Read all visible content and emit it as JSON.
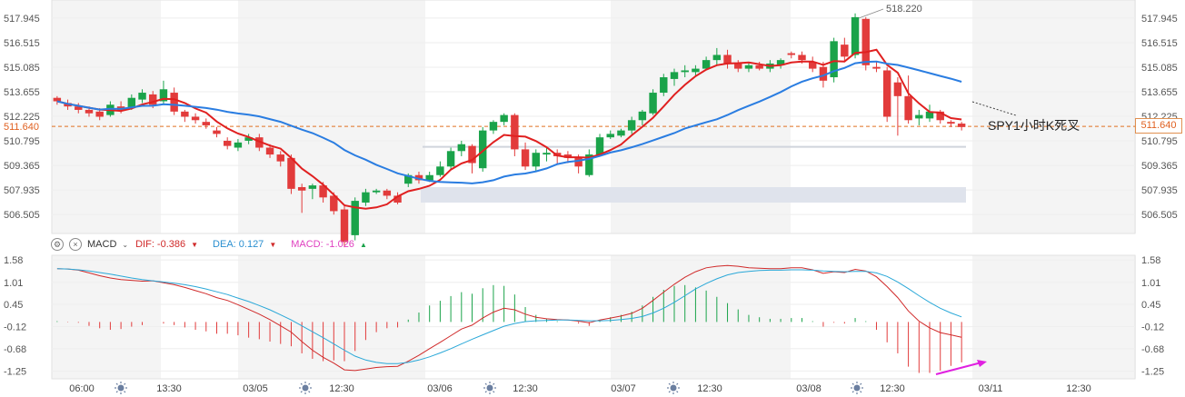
{
  "chart_data": [
    {
      "type": "candlestick",
      "annotation": "SPY1小时K死叉",
      "peak_label": "518.220",
      "current_price": "511.640",
      "y_ticks": [
        "517.945",
        "516.515",
        "515.085",
        "513.655",
        "512.225",
        "511.640",
        "510.795",
        "509.365",
        "507.935",
        "506.505"
      ],
      "ylim": [
        505.4,
        519.0
      ],
      "moving_averages": [
        {
          "color": "#e02020"
        },
        {
          "color": "#2a7de1"
        }
      ],
      "candles": [
        [
          513.3,
          513.1,
          513.4,
          512.9
        ],
        [
          513.0,
          512.8,
          513.2,
          512.6
        ],
        [
          512.8,
          512.6,
          513.0,
          512.4
        ],
        [
          512.6,
          512.4,
          512.8,
          512.2
        ],
        [
          512.5,
          512.2,
          512.7,
          512.0
        ],
        [
          512.3,
          512.9,
          513.1,
          512.2
        ],
        [
          512.8,
          512.6,
          513.1,
          512.4
        ],
        [
          512.7,
          513.3,
          513.5,
          512.6
        ],
        [
          513.2,
          513.6,
          513.8,
          513.0
        ],
        [
          513.5,
          512.9,
          513.7,
          512.7
        ],
        [
          513.1,
          513.8,
          514.3,
          512.9
        ],
        [
          513.6,
          512.5,
          513.9,
          512.3
        ],
        [
          512.5,
          512.2,
          512.6,
          511.9
        ],
        [
          512.2,
          512.0,
          512.4,
          511.8
        ],
        [
          511.9,
          511.7,
          512.1,
          511.5
        ],
        [
          511.4,
          511.2,
          511.6,
          511.0
        ],
        [
          510.8,
          510.5,
          511.0,
          510.3
        ],
        [
          510.4,
          510.7,
          510.9,
          510.2
        ],
        [
          510.8,
          511.0,
          511.2,
          510.6
        ],
        [
          511.0,
          510.4,
          511.2,
          510.2
        ],
        [
          510.4,
          510.0,
          510.6,
          509.8
        ],
        [
          510.0,
          509.6,
          510.2,
          509.3
        ],
        [
          509.8,
          508.0,
          510.0,
          507.7
        ],
        [
          508.1,
          507.9,
          508.3,
          506.6
        ],
        [
          508.0,
          508.2,
          508.3,
          507.4
        ],
        [
          508.2,
          507.5,
          508.4,
          507.2
        ],
        [
          507.6,
          506.7,
          507.8,
          506.5
        ],
        [
          506.8,
          504.9,
          507.0,
          504.6
        ],
        [
          505.3,
          507.3,
          507.5,
          505.0
        ],
        [
          507.2,
          507.8,
          508.0,
          507.0
        ],
        [
          507.8,
          507.9,
          508.0,
          507.7
        ],
        [
          507.9,
          507.6,
          508.0,
          507.4
        ],
        [
          507.6,
          507.2,
          507.8,
          507.1
        ],
        [
          508.3,
          508.8,
          508.9,
          508.1
        ],
        [
          508.8,
          508.5,
          509.0,
          508.3
        ],
        [
          508.5,
          508.8,
          509.0,
          508.4
        ],
        [
          508.8,
          509.3,
          509.6,
          508.7
        ],
        [
          509.3,
          510.2,
          510.4,
          509.1
        ],
        [
          510.2,
          510.6,
          510.8,
          509.9
        ],
        [
          510.5,
          509.5,
          510.6,
          508.9
        ],
        [
          509.2,
          511.4,
          511.6,
          509.0
        ],
        [
          511.4,
          511.9,
          512.0,
          511.2
        ],
        [
          511.9,
          512.3,
          512.4,
          511.7
        ],
        [
          512.3,
          510.3,
          512.4,
          509.9
        ],
        [
          510.3,
          509.3,
          510.7,
          509.1
        ],
        [
          509.3,
          510.1,
          510.3,
          509.0
        ],
        [
          510.0,
          510.1,
          510.4,
          509.6
        ],
        [
          510.1,
          509.9,
          510.3,
          509.4
        ],
        [
          510.0,
          509.8,
          510.2,
          509.5
        ],
        [
          509.8,
          509.3,
          510.0,
          508.9
        ],
        [
          508.8,
          510.0,
          510.3,
          508.7
        ],
        [
          510.0,
          511.0,
          511.2,
          509.9
        ],
        [
          511.0,
          511.2,
          511.4,
          510.9
        ],
        [
          511.1,
          511.4,
          511.5,
          511.0
        ],
        [
          511.4,
          512.0,
          512.2,
          511.2
        ],
        [
          512.0,
          512.5,
          512.6,
          511.7
        ],
        [
          512.4,
          513.6,
          513.8,
          512.3
        ],
        [
          513.6,
          514.5,
          514.7,
          513.4
        ],
        [
          514.4,
          514.8,
          515.0,
          514.0
        ],
        [
          514.8,
          514.9,
          515.2,
          514.5
        ],
        [
          514.8,
          515.0,
          515.2,
          514.6
        ],
        [
          515.0,
          515.5,
          515.7,
          514.9
        ],
        [
          515.5,
          515.8,
          516.2,
          515.2
        ],
        [
          515.8,
          515.3,
          516.1,
          515.0
        ],
        [
          515.3,
          515.0,
          515.5,
          514.8
        ],
        [
          515.0,
          515.2,
          515.4,
          514.8
        ],
        [
          515.2,
          515.0,
          515.4,
          514.9
        ],
        [
          515.0,
          515.3,
          515.5,
          514.8
        ],
        [
          515.2,
          515.5,
          515.6,
          515.0
        ],
        [
          515.9,
          515.8,
          516.0,
          515.6
        ],
        [
          515.8,
          515.5,
          516.0,
          515.3
        ],
        [
          515.4,
          515.0,
          515.7,
          514.8
        ],
        [
          515.1,
          514.3,
          515.4,
          513.9
        ],
        [
          514.5,
          516.6,
          516.8,
          514.2
        ],
        [
          516.4,
          515.7,
          516.8,
          515.4
        ],
        [
          515.8,
          518.0,
          518.22,
          515.6
        ],
        [
          517.9,
          515.2,
          518.0,
          514.9
        ],
        [
          515.1,
          515.0,
          515.4,
          514.8
        ],
        [
          514.9,
          512.2,
          515.1,
          511.9
        ],
        [
          514.2,
          513.4,
          514.5,
          511.1
        ],
        [
          513.4,
          512.0,
          514.6,
          511.8
        ],
        [
          512.1,
          512.3,
          512.6,
          511.7
        ],
        [
          512.1,
          512.5,
          512.9,
          511.9
        ],
        [
          512.5,
          512.0,
          512.6,
          511.8
        ],
        [
          511.9,
          511.8,
          512.0,
          511.6
        ],
        [
          511.8,
          511.6,
          511.9,
          511.4
        ]
      ]
    },
    {
      "type": "macd",
      "label": "MACD",
      "dif_label": "DIF: -0.386",
      "dea_label": "DEA: 0.127",
      "macd_label": "MACD: -1.026",
      "y_ticks": [
        "1.58",
        "1.01",
        "0.45",
        "-0.12",
        "-0.68",
        "-1.25"
      ],
      "ylim": [
        -1.45,
        1.7
      ],
      "dif": [
        1.36,
        1.35,
        1.32,
        1.25,
        1.18,
        1.12,
        1.08,
        1.06,
        1.04,
        1.05,
        1.0,
        0.95,
        0.88,
        0.8,
        0.72,
        0.62,
        0.55,
        0.44,
        0.32,
        0.2,
        0.06,
        -0.1,
        -0.26,
        -0.5,
        -0.72,
        -0.9,
        -1.05,
        -1.22,
        -1.24,
        -1.2,
        -1.16,
        -1.14,
        -1.13,
        -1.0,
        -0.85,
        -0.68,
        -0.52,
        -0.35,
        -0.18,
        -0.08,
        0.1,
        0.25,
        0.35,
        0.31,
        0.2,
        0.12,
        0.08,
        0.06,
        0.05,
        0.02,
        -0.02,
        0.05,
        0.1,
        0.15,
        0.22,
        0.35,
        0.55,
        0.76,
        0.96,
        1.14,
        1.28,
        1.38,
        1.42,
        1.44,
        1.42,
        1.38,
        1.37,
        1.36,
        1.36,
        1.38,
        1.38,
        1.33,
        1.24,
        1.28,
        1.26,
        1.34,
        1.3,
        1.15,
        0.9,
        0.62,
        0.28,
        0.02,
        -0.15,
        -0.27,
        -0.33,
        -0.39
      ],
      "dea": [
        1.36,
        1.35,
        1.33,
        1.3,
        1.26,
        1.22,
        1.17,
        1.12,
        1.08,
        1.05,
        1.02,
        0.99,
        0.95,
        0.9,
        0.84,
        0.77,
        0.7,
        0.61,
        0.52,
        0.42,
        0.31,
        0.18,
        0.05,
        -0.1,
        -0.25,
        -0.4,
        -0.56,
        -0.72,
        -0.87,
        -0.97,
        -1.03,
        -1.06,
        -1.06,
        -1.03,
        -0.97,
        -0.89,
        -0.79,
        -0.68,
        -0.56,
        -0.44,
        -0.33,
        -0.22,
        -0.11,
        -0.04,
        0.01,
        0.03,
        0.04,
        0.05,
        0.05,
        0.04,
        0.03,
        0.03,
        0.04,
        0.06,
        0.09,
        0.14,
        0.23,
        0.35,
        0.5,
        0.67,
        0.84,
        0.98,
        1.1,
        1.2,
        1.26,
        1.29,
        1.31,
        1.32,
        1.32,
        1.33,
        1.33,
        1.32,
        1.3,
        1.29,
        1.28,
        1.29,
        1.29,
        1.25,
        1.16,
        1.02,
        0.85,
        0.67,
        0.5,
        0.35,
        0.23,
        0.13
      ],
      "macd": [
        0.02,
        -0.01,
        -0.02,
        -0.1,
        -0.16,
        -0.2,
        -0.18,
        -0.12,
        -0.08,
        -0.0,
        -0.04,
        -0.08,
        -0.14,
        -0.2,
        -0.24,
        -0.3,
        -0.3,
        -0.34,
        -0.4,
        -0.44,
        -0.5,
        -0.56,
        -0.62,
        -0.8,
        -0.94,
        -1.0,
        -0.98,
        -1.0,
        -0.74,
        -0.46,
        -0.26,
        -0.16,
        -0.14,
        0.06,
        0.24,
        0.42,
        0.54,
        0.66,
        0.76,
        0.72,
        0.86,
        0.94,
        0.92,
        0.7,
        0.38,
        0.18,
        0.08,
        0.02,
        -0.0,
        -0.04,
        -0.1,
        0.04,
        0.12,
        0.18,
        0.26,
        0.42,
        0.64,
        0.82,
        0.92,
        0.94,
        0.88,
        0.8,
        0.64,
        0.48,
        0.32,
        0.18,
        0.12,
        0.08,
        0.08,
        0.1,
        0.1,
        0.02,
        -0.12,
        -0.02,
        -0.04,
        0.1,
        0.02,
        -0.2,
        -0.52,
        -0.8,
        -1.14,
        -1.3,
        -1.3,
        -1.24,
        -1.12,
        -1.03
      ]
    }
  ],
  "x_ticks": [
    "06:00",
    "13:30",
    "03/05",
    "12:30",
    "03/06",
    "12:30",
    "03/07",
    "12:30",
    "03/08",
    "12:30",
    "03/11",
    "12:30"
  ],
  "colors": {
    "up": "#1aa34a",
    "down": "#e23b3b",
    "dif": "#d02a2a",
    "dea": "#2aa8d8",
    "macd": "#e040c0",
    "arrow": "#e020e0",
    "price_line": "#e07020"
  }
}
